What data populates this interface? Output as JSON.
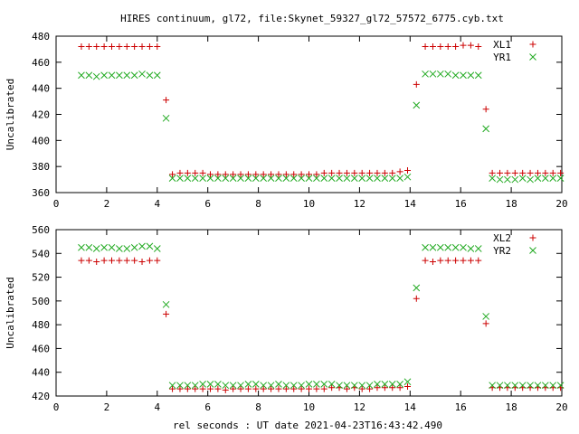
{
  "title": "HIRES continuum, gl72, file:Skynet_59327_gl72_57572_6775.cyb.txt",
  "xlabel": "rel seconds : UT date 2021-04-23T16:43:42.490",
  "colors": {
    "plus": "#cc0000",
    "cross": "#22aa22",
    "axis": "#000000"
  },
  "chart_data": [
    {
      "type": "scatter",
      "ylabel": "Uncalibrated",
      "xlim": [
        0,
        20
      ],
      "ylim": [
        360,
        480
      ],
      "xticks": [
        "0",
        "2",
        "4",
        "6",
        "8",
        "10",
        "12",
        "14",
        "16",
        "18",
        "20"
      ],
      "yticks": [
        "360",
        "380",
        "400",
        "420",
        "440",
        "460",
        "480"
      ],
      "legend_position": "top-right",
      "series": [
        {
          "name": "XL1",
          "marker": "plus",
          "points": [
            [
              1.0,
              472
            ],
            [
              1.3,
              472
            ],
            [
              1.6,
              472
            ],
            [
              1.9,
              472
            ],
            [
              2.2,
              472
            ],
            [
              2.5,
              472
            ],
            [
              2.8,
              472
            ],
            [
              3.1,
              472
            ],
            [
              3.4,
              472
            ],
            [
              3.7,
              472
            ],
            [
              4.0,
              472
            ],
            [
              4.35,
              431
            ],
            [
              4.6,
              374
            ],
            [
              4.9,
              375
            ],
            [
              5.2,
              375
            ],
            [
              5.5,
              375
            ],
            [
              5.8,
              375
            ],
            [
              6.1,
              374
            ],
            [
              6.4,
              374
            ],
            [
              6.7,
              374
            ],
            [
              7.0,
              374
            ],
            [
              7.3,
              374
            ],
            [
              7.6,
              374
            ],
            [
              7.9,
              374
            ],
            [
              8.2,
              374
            ],
            [
              8.5,
              374
            ],
            [
              8.8,
              374
            ],
            [
              9.1,
              374
            ],
            [
              9.4,
              374
            ],
            [
              9.7,
              374
            ],
            [
              10.0,
              374
            ],
            [
              10.3,
              374
            ],
            [
              10.6,
              375
            ],
            [
              10.9,
              375
            ],
            [
              11.2,
              375
            ],
            [
              11.5,
              375
            ],
            [
              11.8,
              375
            ],
            [
              12.1,
              375
            ],
            [
              12.4,
              375
            ],
            [
              12.7,
              375
            ],
            [
              13.0,
              375
            ],
            [
              13.3,
              375
            ],
            [
              13.6,
              376
            ],
            [
              13.9,
              377
            ],
            [
              14.25,
              443
            ],
            [
              14.6,
              472
            ],
            [
              14.9,
              472
            ],
            [
              15.2,
              472
            ],
            [
              15.5,
              472
            ],
            [
              15.8,
              472
            ],
            [
              16.1,
              473
            ],
            [
              16.4,
              473
            ],
            [
              16.7,
              472
            ],
            [
              17.0,
              424
            ],
            [
              17.25,
              375
            ],
            [
              17.55,
              375
            ],
            [
              17.85,
              375
            ],
            [
              18.15,
              375
            ],
            [
              18.45,
              375
            ],
            [
              18.75,
              375
            ],
            [
              19.05,
              375
            ],
            [
              19.35,
              375
            ],
            [
              19.65,
              375
            ],
            [
              19.95,
              375
            ]
          ]
        },
        {
          "name": "YR1",
          "marker": "cross",
          "points": [
            [
              1.0,
              450
            ],
            [
              1.3,
              450
            ],
            [
              1.6,
              449
            ],
            [
              1.9,
              450
            ],
            [
              2.2,
              450
            ],
            [
              2.5,
              450
            ],
            [
              2.8,
              450
            ],
            [
              3.1,
              450
            ],
            [
              3.4,
              451
            ],
            [
              3.7,
              450
            ],
            [
              4.0,
              450
            ],
            [
              4.35,
              417
            ],
            [
              4.6,
              371
            ],
            [
              4.9,
              371
            ],
            [
              5.2,
              371
            ],
            [
              5.5,
              371
            ],
            [
              5.8,
              371
            ],
            [
              6.1,
              371
            ],
            [
              6.4,
              371
            ],
            [
              6.7,
              371
            ],
            [
              7.0,
              371
            ],
            [
              7.3,
              371
            ],
            [
              7.6,
              371
            ],
            [
              7.9,
              371
            ],
            [
              8.2,
              371
            ],
            [
              8.5,
              371
            ],
            [
              8.8,
              371
            ],
            [
              9.1,
              371
            ],
            [
              9.4,
              371
            ],
            [
              9.7,
              371
            ],
            [
              10.0,
              371
            ],
            [
              10.3,
              371
            ],
            [
              10.6,
              371
            ],
            [
              10.9,
              371
            ],
            [
              11.2,
              371
            ],
            [
              11.5,
              371
            ],
            [
              11.8,
              371
            ],
            [
              12.1,
              371
            ],
            [
              12.4,
              371
            ],
            [
              12.7,
              371
            ],
            [
              13.0,
              371
            ],
            [
              13.3,
              371
            ],
            [
              13.6,
              371
            ],
            [
              13.9,
              372
            ],
            [
              14.25,
              427
            ],
            [
              14.6,
              451
            ],
            [
              14.9,
              451
            ],
            [
              15.2,
              451
            ],
            [
              15.5,
              451
            ],
            [
              15.8,
              450
            ],
            [
              16.1,
              450
            ],
            [
              16.4,
              450
            ],
            [
              16.7,
              450
            ],
            [
              17.0,
              409
            ],
            [
              17.25,
              371
            ],
            [
              17.55,
              370
            ],
            [
              17.85,
              370
            ],
            [
              18.15,
              370
            ],
            [
              18.45,
              371
            ],
            [
              18.75,
              370
            ],
            [
              19.05,
              371
            ],
            [
              19.35,
              371
            ],
            [
              19.65,
              371
            ],
            [
              19.95,
              371
            ]
          ]
        }
      ]
    },
    {
      "type": "scatter",
      "ylabel": "Uncalibrated",
      "xlim": [
        0,
        20
      ],
      "ylim": [
        420,
        560
      ],
      "xticks": [
        "0",
        "2",
        "4",
        "6",
        "8",
        "10",
        "12",
        "14",
        "16",
        "18",
        "20"
      ],
      "yticks": [
        "420",
        "440",
        "460",
        "480",
        "500",
        "520",
        "540",
        "560"
      ],
      "legend_position": "top-right",
      "series": [
        {
          "name": "XL2",
          "marker": "plus",
          "points": [
            [
              1.0,
              534
            ],
            [
              1.3,
              534
            ],
            [
              1.6,
              533
            ],
            [
              1.9,
              534
            ],
            [
              2.2,
              534
            ],
            [
              2.5,
              534
            ],
            [
              2.8,
              534
            ],
            [
              3.1,
              534
            ],
            [
              3.4,
              533
            ],
            [
              3.7,
              534
            ],
            [
              4.0,
              534
            ],
            [
              4.35,
              489
            ],
            [
              4.6,
              426
            ],
            [
              4.9,
              426
            ],
            [
              5.2,
              426
            ],
            [
              5.5,
              426
            ],
            [
              5.8,
              426
            ],
            [
              6.1,
              426
            ],
            [
              6.4,
              426
            ],
            [
              6.7,
              425
            ],
            [
              7.0,
              426
            ],
            [
              7.3,
              426
            ],
            [
              7.6,
              426
            ],
            [
              7.9,
              426
            ],
            [
              8.2,
              426
            ],
            [
              8.5,
              426
            ],
            [
              8.8,
              426
            ],
            [
              9.1,
              426
            ],
            [
              9.4,
              426
            ],
            [
              9.7,
              426
            ],
            [
              10.0,
              426
            ],
            [
              10.3,
              426
            ],
            [
              10.6,
              426
            ],
            [
              10.9,
              427
            ],
            [
              11.2,
              427
            ],
            [
              11.5,
              426
            ],
            [
              11.8,
              427
            ],
            [
              12.1,
              426
            ],
            [
              12.4,
              426
            ],
            [
              12.7,
              427
            ],
            [
              13.0,
              427
            ],
            [
              13.3,
              427
            ],
            [
              13.6,
              427
            ],
            [
              13.9,
              428
            ],
            [
              14.25,
              502
            ],
            [
              14.6,
              534
            ],
            [
              14.9,
              533
            ],
            [
              15.2,
              534
            ],
            [
              15.5,
              534
            ],
            [
              15.8,
              534
            ],
            [
              16.1,
              534
            ],
            [
              16.4,
              534
            ],
            [
              16.7,
              534
            ],
            [
              17.0,
              481
            ],
            [
              17.25,
              427
            ],
            [
              17.55,
              427
            ],
            [
              17.85,
              427
            ],
            [
              18.15,
              427
            ],
            [
              18.45,
              427
            ],
            [
              18.75,
              427
            ],
            [
              19.05,
              427
            ],
            [
              19.35,
              427
            ],
            [
              19.65,
              427
            ],
            [
              19.95,
              427
            ]
          ]
        },
        {
          "name": "YR2",
          "marker": "cross",
          "points": [
            [
              1.0,
              545
            ],
            [
              1.3,
              545
            ],
            [
              1.6,
              544
            ],
            [
              1.9,
              545
            ],
            [
              2.2,
              545
            ],
            [
              2.5,
              544
            ],
            [
              2.8,
              544
            ],
            [
              3.1,
              545
            ],
            [
              3.4,
              546
            ],
            [
              3.7,
              546
            ],
            [
              4.0,
              544
            ],
            [
              4.35,
              497
            ],
            [
              4.6,
              429
            ],
            [
              4.9,
              429
            ],
            [
              5.2,
              429
            ],
            [
              5.5,
              429
            ],
            [
              5.8,
              430
            ],
            [
              6.1,
              430
            ],
            [
              6.4,
              430
            ],
            [
              6.7,
              429
            ],
            [
              7.0,
              429
            ],
            [
              7.3,
              429
            ],
            [
              7.6,
              430
            ],
            [
              7.9,
              430
            ],
            [
              8.2,
              429
            ],
            [
              8.5,
              429
            ],
            [
              8.8,
              430
            ],
            [
              9.1,
              429
            ],
            [
              9.4,
              429
            ],
            [
              9.7,
              429
            ],
            [
              10.0,
              430
            ],
            [
              10.3,
              430
            ],
            [
              10.6,
              430
            ],
            [
              10.9,
              430
            ],
            [
              11.2,
              429
            ],
            [
              11.5,
              429
            ],
            [
              11.8,
              429
            ],
            [
              12.1,
              429
            ],
            [
              12.4,
              429
            ],
            [
              12.7,
              430
            ],
            [
              13.0,
              430
            ],
            [
              13.3,
              430
            ],
            [
              13.6,
              430
            ],
            [
              13.9,
              432
            ],
            [
              14.25,
              511
            ],
            [
              14.6,
              545
            ],
            [
              14.9,
              545
            ],
            [
              15.2,
              545
            ],
            [
              15.5,
              545
            ],
            [
              15.8,
              545
            ],
            [
              16.1,
              545
            ],
            [
              16.4,
              544
            ],
            [
              16.7,
              544
            ],
            [
              17.0,
              487
            ],
            [
              17.25,
              429
            ],
            [
              17.55,
              429
            ],
            [
              17.85,
              429
            ],
            [
              18.15,
              429
            ],
            [
              18.45,
              429
            ],
            [
              18.75,
              429
            ],
            [
              19.05,
              429
            ],
            [
              19.35,
              429
            ],
            [
              19.65,
              429
            ],
            [
              19.95,
              429
            ]
          ]
        }
      ]
    }
  ]
}
